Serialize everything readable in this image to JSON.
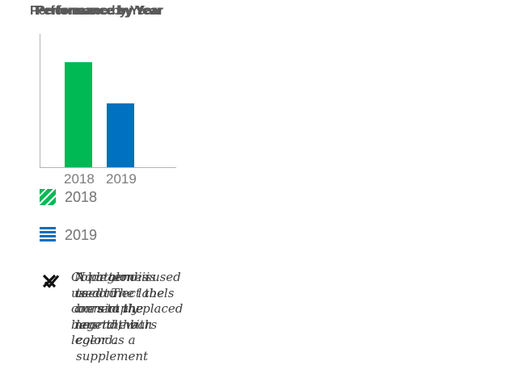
{
  "page": {
    "background": "#ffffff"
  },
  "colors": {
    "green_2018": "#00b955",
    "blue_2019": "#0070c0",
    "title_text": "#595959",
    "label_text": "#7d7d7d",
    "axis_line": "#b5b5b5",
    "annotation_text": "#3d3d3d",
    "verdict_mark": "#111111"
  },
  "chart_data": [
    {
      "type": "bar",
      "title": "Performance by Year",
      "categories": [
        "2018",
        "2019"
      ],
      "values": [
        79,
        48
      ],
      "ylim": [
        0,
        100
      ],
      "grid": false,
      "series_colors": [
        "#00b955",
        "#0070c0"
      ],
      "patterns": [
        "solid",
        "solid"
      ],
      "bar_labels_visible": false,
      "legend": {
        "visible": true,
        "position": "below",
        "items": [
          {
            "label": "2018",
            "color": "#00b955",
            "pattern": "solid"
          },
          {
            "label": "2019",
            "color": "#0070c0",
            "pattern": "solid"
          }
        ]
      },
      "annotation": {
        "icon": "x-mark-icon",
        "verdict": "bad",
        "text": "Color alone is used to connect the bars to the legend."
      }
    },
    {
      "type": "bar",
      "title": "Performance by Year",
      "categories": [
        "2018",
        "2019"
      ],
      "values": [
        79,
        48
      ],
      "ylim": [
        0,
        100
      ],
      "grid": false,
      "series_colors": [
        "#00b955",
        "#0070c0"
      ],
      "patterns": [
        "diagonal-hatch",
        "horizontal-stripes"
      ],
      "bar_labels_visible": false,
      "legend": {
        "visible": true,
        "position": "below",
        "items": [
          {
            "label": "2018",
            "color": "#00b955",
            "pattern": "diagonal-hatch"
          },
          {
            "label": "2019",
            "color": "#0070c0",
            "pattern": "horizontal-stripes"
          }
        ]
      },
      "annotation": {
        "icon": "check-mark-icon",
        "verdict": "good",
        "text": "A pattern is used to connect the bars to the legend, with color as a supplement"
      }
    },
    {
      "type": "bar",
      "title": "Performance by Year",
      "categories": [
        "2018",
        "2019"
      ],
      "values": [
        79,
        48
      ],
      "ylim": [
        0,
        100
      ],
      "grid": false,
      "series_colors": [
        "#00b955",
        "#0070c0"
      ],
      "patterns": [
        "solid",
        "solid"
      ],
      "bar_labels_visible": true,
      "legend": {
        "visible": false,
        "position": "none",
        "items": []
      },
      "annotation": {
        "icon": "check-mark-icon",
        "verdict": "good",
        "text": "No legend is used. The labels are simply placed near the bars"
      }
    }
  ]
}
